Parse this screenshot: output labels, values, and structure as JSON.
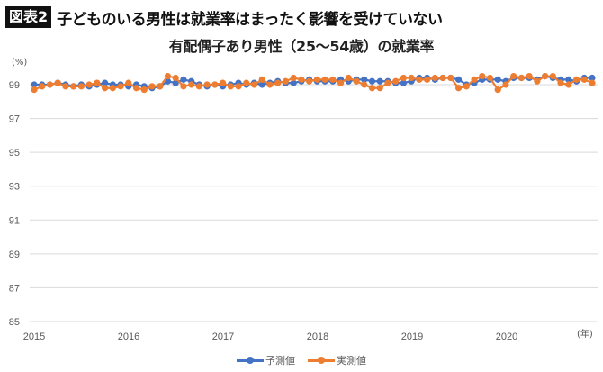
{
  "header": {
    "badge": "図表2",
    "title": "子どものいる男性は就業率はまったく影響を受けていない"
  },
  "chart_data": {
    "type": "line",
    "title": "有配偶子あり男性（25〜54歳）の就業率",
    "ylabel": "(%)",
    "xlabel": "(年)",
    "ylim": [
      85,
      100
    ],
    "y_ticks": [
      "85",
      "87",
      "89",
      "91",
      "93",
      "95",
      "97",
      "99"
    ],
    "x_tick_labels": [
      "2015",
      "2016",
      "2017",
      "2018",
      "2019",
      "2020"
    ],
    "grid": true,
    "legend_position": "bottom",
    "x_start": "2015-01",
    "frequency": "monthly",
    "series": [
      {
        "name": "予測値",
        "color": "#4472C4",
        "values": [
          99.0,
          99.0,
          99.0,
          99.1,
          99.0,
          98.9,
          99.0,
          98.9,
          99.0,
          99.1,
          99.0,
          99.0,
          98.9,
          99.0,
          98.9,
          98.8,
          98.9,
          99.2,
          99.1,
          99.3,
          99.2,
          99.0,
          98.9,
          99.0,
          98.9,
          99.0,
          99.1,
          99.0,
          99.1,
          99.0,
          99.1,
          99.2,
          99.1,
          99.1,
          99.2,
          99.3,
          99.2,
          99.2,
          99.2,
          99.3,
          99.2,
          99.3,
          99.3,
          99.2,
          99.2,
          99.2,
          99.1,
          99.1,
          99.2,
          99.4,
          99.4,
          99.3,
          99.4,
          99.4,
          99.3,
          99.0,
          99.1,
          99.3,
          99.3,
          99.3,
          99.2,
          99.4,
          99.4,
          99.4,
          99.3,
          99.5,
          99.4,
          99.3,
          99.3,
          99.2,
          99.4,
          99.4
        ],
        "legend_label": "予測値"
      },
      {
        "name": "実測値",
        "color": "#ED7D31",
        "values": [
          98.7,
          98.9,
          99.0,
          99.1,
          98.9,
          98.9,
          98.9,
          99.0,
          99.1,
          98.8,
          98.8,
          98.9,
          99.1,
          98.8,
          98.7,
          98.9,
          98.9,
          99.5,
          99.4,
          98.9,
          99.0,
          98.9,
          99.0,
          99.0,
          99.1,
          98.9,
          98.9,
          99.1,
          99.0,
          99.3,
          99.0,
          99.1,
          99.2,
          99.4,
          99.3,
          99.2,
          99.3,
          99.3,
          99.3,
          99.1,
          99.4,
          99.2,
          99.0,
          98.8,
          98.8,
          99.1,
          99.2,
          99.4,
          99.4,
          99.3,
          99.3,
          99.4,
          99.4,
          99.4,
          98.8,
          98.9,
          99.3,
          99.5,
          99.4,
          98.7,
          99.0,
          99.5,
          99.4,
          99.5,
          99.2,
          99.5,
          99.5,
          99.1,
          99.0,
          99.3,
          99.3,
          99.1
        ],
        "legend_label": "実測値"
      }
    ]
  }
}
